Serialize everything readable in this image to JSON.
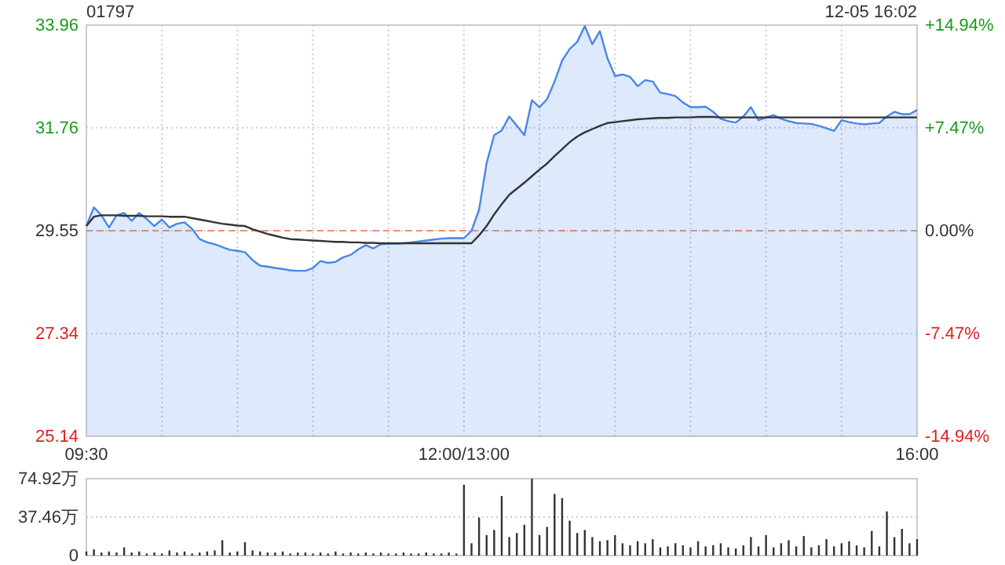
{
  "chart_data": [
    {
      "type": "line",
      "title": "01797",
      "subtitle": "12-05 16:02",
      "categories": [
        "09:30",
        null,
        null,
        null,
        null,
        null,
        null,
        null,
        null,
        null,
        null,
        null,
        null,
        null,
        null,
        null,
        null,
        null,
        null,
        null,
        null,
        null,
        null,
        null,
        null,
        null,
        null,
        null,
        null,
        null,
        null,
        null,
        null,
        null,
        null,
        null,
        null,
        null,
        null,
        null,
        null,
        null,
        null,
        null,
        null,
        null,
        null,
        null,
        null,
        null,
        "12:00/13:00",
        null,
        null,
        null,
        null,
        null,
        null,
        null,
        null,
        null,
        null,
        null,
        null,
        null,
        null,
        null,
        null,
        null,
        null,
        null,
        null,
        null,
        null,
        null,
        null,
        null,
        null,
        null,
        null,
        null,
        null,
        null,
        null,
        null,
        null,
        null,
        null,
        null,
        null,
        null,
        null,
        null,
        null,
        null,
        null,
        null,
        null,
        null,
        null,
        null,
        null,
        null,
        null,
        null,
        null,
        null,
        null,
        null,
        null,
        null,
        "16:00"
      ],
      "ylim": [
        25.14,
        33.96
      ],
      "yticks": [
        25.14,
        27.34,
        29.55,
        31.76,
        33.96
      ],
      "y2lim": [
        -14.94,
        14.94
      ],
      "y2ticks": [
        {
          "value": -14.94,
          "label": "-14.94%"
        },
        {
          "value": -7.47,
          "label": "-7.47%"
        },
        {
          "value": 0,
          "label": "0.00%"
        },
        {
          "value": 7.47,
          "label": "+7.47%"
        },
        {
          "value": 14.94,
          "label": "+14.94%"
        }
      ],
      "grid": true,
      "ref_lines": [
        {
          "axis": "y",
          "value": 29.55,
          "color": "#e8956a",
          "line_style": "dashed"
        }
      ],
      "series": [
        {
          "type": "area",
          "color": "#4a86e8",
          "values": [
            29.65,
            30.05,
            29.88,
            29.62,
            29.88,
            29.93,
            29.76,
            29.93,
            29.8,
            29.65,
            29.79,
            29.62,
            29.7,
            29.73,
            29.59,
            29.37,
            29.3,
            29.26,
            29.2,
            29.14,
            29.12,
            29.09,
            28.92,
            28.8,
            28.78,
            28.75,
            28.73,
            28.7,
            28.69,
            28.69,
            28.75,
            28.9,
            28.86,
            28.88,
            28.98,
            29.03,
            29.15,
            29.24,
            29.17,
            29.26,
            29.27,
            29.27,
            29.28,
            29.3,
            29.32,
            29.34,
            29.36,
            29.38,
            29.39,
            29.39,
            29.39,
            29.55,
            30.0,
            31.0,
            31.6,
            31.7,
            32.0,
            31.8,
            31.6,
            32.35,
            32.2,
            32.37,
            32.75,
            33.2,
            33.45,
            33.6,
            33.94,
            33.55,
            33.83,
            33.25,
            32.87,
            32.9,
            32.85,
            32.65,
            32.78,
            32.75,
            32.51,
            32.48,
            32.44,
            32.3,
            32.2,
            32.2,
            32.21,
            32.1,
            31.95,
            31.9,
            31.87,
            32.0,
            32.2,
            31.92,
            31.98,
            32.03,
            31.95,
            31.9,
            31.86,
            31.85,
            31.84,
            31.8,
            31.75,
            31.69,
            31.92,
            31.88,
            31.85,
            31.83,
            31.85,
            31.86,
            32.0,
            32.1,
            32.05,
            32.05,
            32.14
          ]
        },
        {
          "color": "#333333",
          "values": [
            29.65,
            29.85,
            29.88,
            29.88,
            29.88,
            29.87,
            29.87,
            29.87,
            29.86,
            29.86,
            29.86,
            29.85,
            29.85,
            29.85,
            29.82,
            29.79,
            29.76,
            29.73,
            29.7,
            29.68,
            29.66,
            29.65,
            29.58,
            29.53,
            29.48,
            29.44,
            29.4,
            29.37,
            29.36,
            29.35,
            29.34,
            29.33,
            29.32,
            29.31,
            29.31,
            29.3,
            29.3,
            29.29,
            29.29,
            29.28,
            29.28,
            29.28,
            29.28,
            29.28,
            29.28,
            29.28,
            29.28,
            29.28,
            29.28,
            29.28,
            29.28,
            29.28,
            29.45,
            29.65,
            29.9,
            30.12,
            30.32,
            30.45,
            30.58,
            30.72,
            30.86,
            30.99,
            31.15,
            31.3,
            31.45,
            31.57,
            31.66,
            31.73,
            31.8,
            31.86,
            31.88,
            31.9,
            31.92,
            31.94,
            31.95,
            31.96,
            31.97,
            31.97,
            31.98,
            31.98,
            31.98,
            31.99,
            31.99,
            31.99,
            31.98,
            31.98,
            31.98,
            31.98,
            31.98,
            31.98,
            31.98,
            31.98,
            31.98,
            31.98,
            31.98,
            31.98,
            31.98,
            31.98,
            31.98,
            31.98,
            31.98,
            31.98,
            31.98,
            31.98,
            31.98,
            31.98,
            31.98,
            31.98,
            31.98,
            31.98,
            31.98
          ]
        }
      ]
    },
    {
      "type": "bar",
      "categories": [
        null,
        null,
        null,
        null,
        null,
        null,
        null,
        null,
        null,
        null,
        null,
        null,
        null,
        null,
        null,
        null,
        null,
        null,
        null,
        null,
        null,
        null,
        null,
        null,
        null,
        null,
        null,
        null,
        null,
        null,
        null,
        null,
        null,
        null,
        null,
        null,
        null,
        null,
        null,
        null,
        null,
        null,
        null,
        null,
        null,
        null,
        null,
        null,
        null,
        null,
        null,
        null,
        null,
        null,
        null,
        null,
        null,
        null,
        null,
        null,
        null,
        null,
        null,
        null,
        null,
        null,
        null,
        null,
        null,
        null,
        null,
        null,
        null,
        null,
        null,
        null,
        null,
        null,
        null,
        null,
        null,
        null,
        null,
        null,
        null,
        null,
        null,
        null,
        null,
        null,
        null,
        null,
        null,
        null,
        null,
        null,
        null,
        null,
        null,
        null,
        null,
        null,
        null,
        null,
        null,
        null,
        null,
        null,
        null,
        null,
        null
      ],
      "ylim": [
        0,
        74.92
      ],
      "yticks": [
        0,
        {
          "value": 37.46,
          "label": "37.46万"
        },
        {
          "value": 74.92,
          "label": "74.92万"
        }
      ],
      "grid": "y",
      "tick_labels": "y",
      "color": "#333333",
      "values": [
        4,
        6,
        3,
        4,
        3,
        8,
        3,
        4,
        2,
        3,
        2,
        5,
        3,
        4,
        2,
        3,
        4,
        5,
        15,
        3,
        4,
        13,
        5,
        4,
        3,
        3,
        4,
        2,
        3,
        3,
        2,
        3,
        2,
        4,
        2,
        3,
        2,
        3,
        2,
        3,
        2,
        2,
        3,
        2,
        2,
        3,
        2,
        2,
        3,
        2,
        69,
        12,
        37,
        20,
        25,
        58,
        18,
        22,
        30,
        74.9,
        20,
        28,
        60,
        56,
        34,
        22,
        25,
        18,
        14,
        15,
        20,
        12,
        10,
        14,
        12,
        16,
        8,
        9,
        12,
        10,
        8,
        14,
        9,
        10,
        12,
        8,
        7,
        10,
        18,
        9,
        20,
        8,
        12,
        15,
        9,
        19,
        8,
        10,
        16,
        9,
        12,
        14,
        10,
        8,
        24,
        9,
        43,
        18,
        26,
        12,
        16
      ]
    }
  ]
}
